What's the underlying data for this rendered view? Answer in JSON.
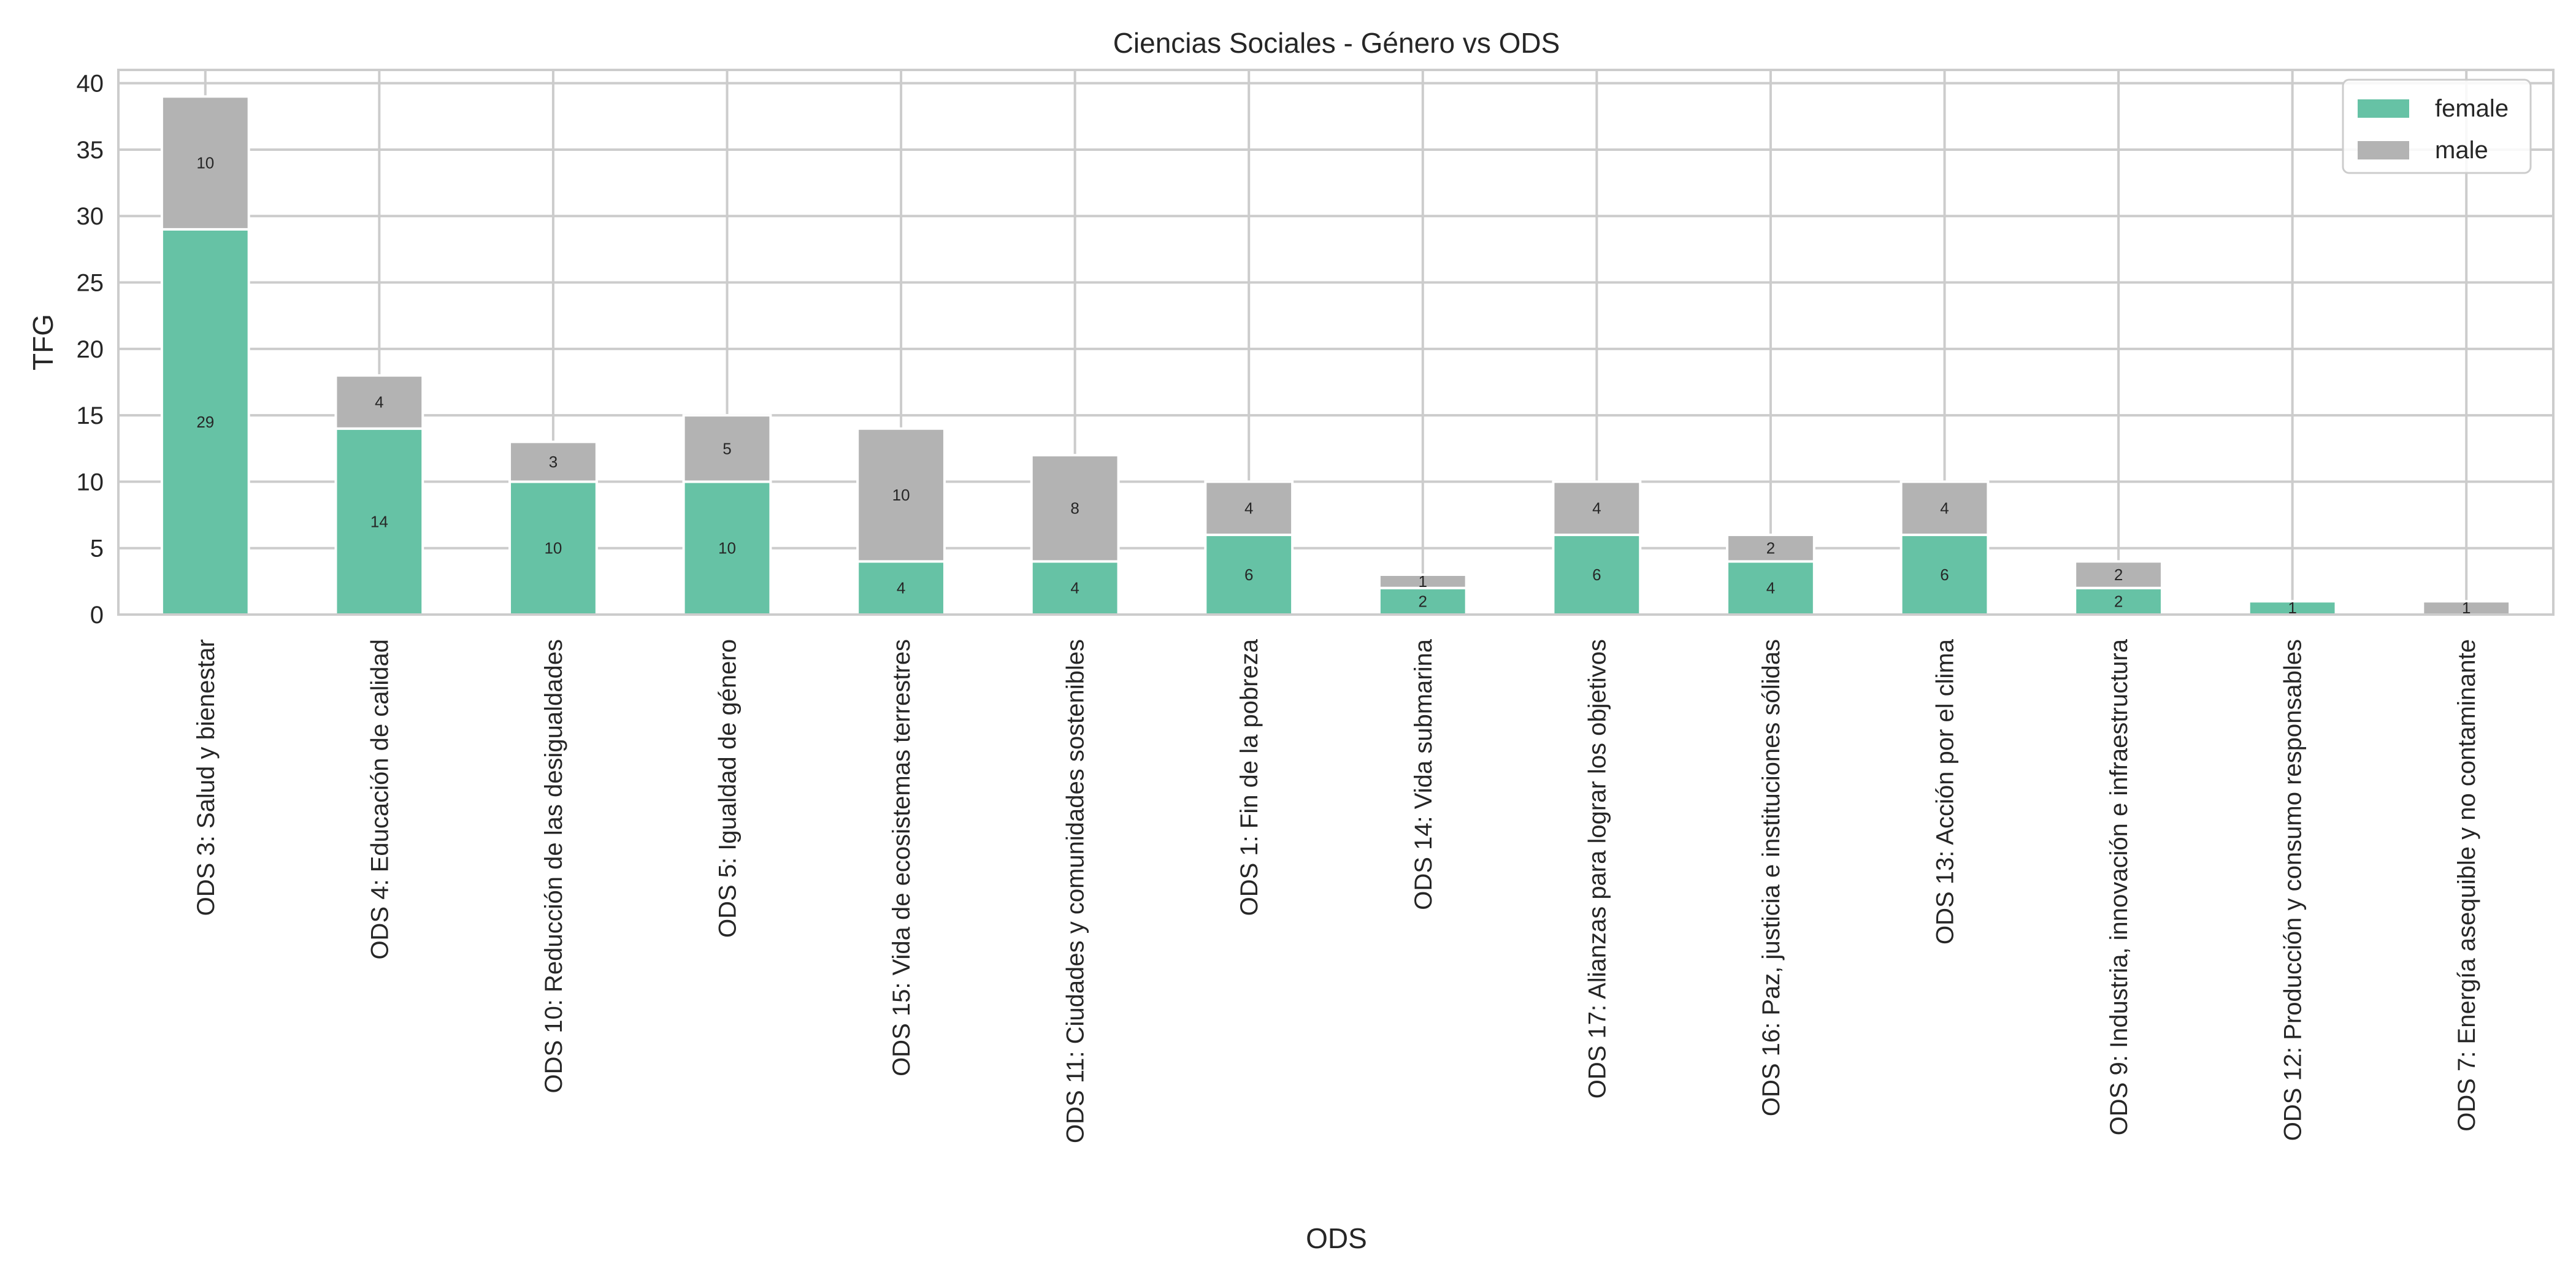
{
  "chart_data": {
    "type": "bar",
    "stacked": true,
    "title": "Ciencias Sociales - Género vs ODS",
    "xlabel": "ODS",
    "ylabel": "TFG",
    "ylim": [
      0,
      41
    ],
    "yticks": [
      0,
      5,
      10,
      15,
      20,
      25,
      30,
      35,
      40
    ],
    "grid": true,
    "legend_position": "top-right",
    "categories": [
      "ODS 3: Salud y bienestar",
      "ODS 4: Educación de calidad",
      "ODS 10: Reducción de las desigualdades",
      "ODS 5: Igualdad de género",
      "ODS 15: Vida de ecosistemas terrestres",
      "ODS 11: Ciudades y comunidades sostenibles",
      "ODS 1: Fin de la pobreza",
      "ODS 14: Vida submarina",
      "ODS 17: Alianzas para lograr los objetivos",
      "ODS 16: Paz, justicia e instituciones sólidas",
      "ODS 13: Acción por el clima",
      "ODS 9: Industria, innovación e infraestructura",
      "ODS 12: Producción y consumo responsables",
      "ODS 7: Energía asequible y no contaminante"
    ],
    "series": [
      {
        "name": "female",
        "color": "#66c2a5",
        "values": [
          29,
          14,
          10,
          10,
          4,
          4,
          6,
          2,
          6,
          4,
          6,
          2,
          1,
          0
        ]
      },
      {
        "name": "male",
        "color": "#b3b3b3",
        "values": [
          10,
          4,
          3,
          5,
          10,
          8,
          4,
          1,
          4,
          2,
          4,
          2,
          0,
          1
        ]
      }
    ]
  }
}
